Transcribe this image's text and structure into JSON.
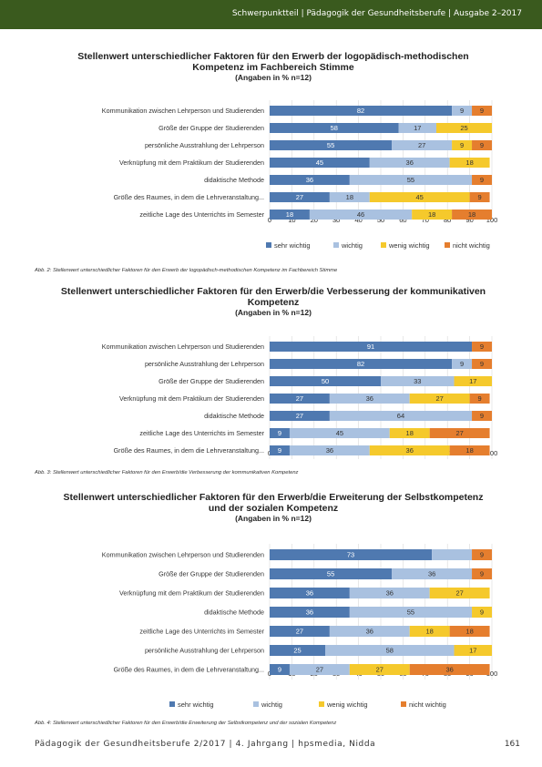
{
  "header": {
    "text": "Schwerpunktteil | Pädagogik der Gesundheitsberufe | Ausgabe 2–2017"
  },
  "colors": {
    "sehr_wichtig": "#4f79b0",
    "wichtig": "#a9c1e0",
    "wenig_wichtig": "#f5c92c",
    "nicht_wichtig": "#e57e2e",
    "header_bg": "#3a5a1e"
  },
  "chart_data": [
    {
      "type": "bar",
      "orientation": "horizontal-stacked",
      "title": "Stellenwert unterschiedlicher Faktoren für den Erwerb der logopädisch-methodischen Kompetenz im Fachbereich Stimme",
      "subtitle": "(Angaben in % n=12)",
      "categories": [
        "Kommunikation zwischen Lehrperson und Studierenden",
        "Größe der Gruppe der Studierenden",
        "persönliche Ausstrahlung der Lehrperson",
        "Verknüpfung mit dem Praktikum der Studierenden",
        "didaktische Methode",
        "Größe des Raumes, in dem die Lehrveranstaltung...",
        "zeitliche Lage des Unterrichts im Semester"
      ],
      "series": [
        {
          "name": "sehr wichtig",
          "values": [
            82,
            58,
            55,
            45,
            36,
            27,
            18
          ]
        },
        {
          "name": "wichtig",
          "values": [
            9,
            17,
            27,
            36,
            55,
            18,
            46
          ]
        },
        {
          "name": "wenig wichtig",
          "values": [
            0,
            25,
            9,
            18,
            0,
            45,
            18
          ]
        },
        {
          "name": "nicht wichtig",
          "values": [
            9,
            0,
            9,
            0,
            9,
            9,
            18
          ]
        }
      ],
      "labels": [
        [
          "82",
          "9",
          "",
          "9"
        ],
        [
          "58",
          "17",
          "25",
          ""
        ],
        [
          "55",
          "27",
          "9",
          "9"
        ],
        [
          "45",
          "36",
          "18",
          ""
        ],
        [
          "36",
          "55",
          "",
          "9"
        ],
        [
          "27",
          "18",
          "45",
          "9"
        ],
        [
          "18",
          "46",
          "18",
          "18"
        ]
      ],
      "xlim": [
        0,
        100
      ],
      "xticks": [
        "0",
        "10",
        "20",
        "30",
        "40",
        "50",
        "60",
        "70",
        "80",
        "90",
        "100"
      ],
      "legend": "bottom",
      "caption": "Abb. 2: Stellenwert unterschiedlicher Faktoren für den Erwerb der logopädisch-methodischen Kompetenz im Fachbereich Stimme"
    },
    {
      "type": "bar",
      "orientation": "horizontal-stacked",
      "title": "Stellenwert unterschiedlicher Faktoren für den Erwerb/die Verbesserung der kommunikativen Kompetenz",
      "subtitle": "(Angaben in % n=12)",
      "categories": [
        "Kommunikation zwischen Lehrperson und Studierenden",
        "persönliche Ausstrahlung der Lehrperson",
        "Größe der Gruppe der Studierenden",
        "Verknüpfung mit dem Praktikum der Studierenden",
        "didaktische Methode",
        "zeitliche Lage des Unterrichts im Semester",
        "Größe des Raumes, in dem die Lehrveranstaltung..."
      ],
      "series": [
        {
          "name": "sehr wichtig",
          "values": [
            91,
            82,
            50,
            27,
            27,
            9,
            9
          ]
        },
        {
          "name": "wichtig",
          "values": [
            0,
            9,
            33,
            36,
            64,
            45,
            36
          ]
        },
        {
          "name": "wenig wichtig",
          "values": [
            0,
            0,
            17,
            27,
            0,
            18,
            36
          ]
        },
        {
          "name": "nicht wichtig",
          "values": [
            9,
            9,
            0,
            9,
            9,
            27,
            18
          ]
        }
      ],
      "labels": [
        [
          "91",
          "",
          "",
          "9"
        ],
        [
          "82",
          "9",
          "",
          "9"
        ],
        [
          "50",
          "33",
          "17",
          ""
        ],
        [
          "27",
          "36",
          "27",
          "9"
        ],
        [
          "27",
          "64",
          "",
          "9"
        ],
        [
          "9",
          "45",
          "18",
          "27"
        ],
        [
          "9",
          "36",
          "36",
          "18"
        ]
      ],
      "xlim": [
        0,
        100
      ],
      "xticks": [
        "0",
        "10",
        "20",
        "30",
        "40",
        "50",
        "60",
        "70",
        "80",
        "90",
        "100"
      ],
      "legend": "none",
      "caption": "Abb. 3: Stellenwert unterschiedlicher Faktoren für den Erwerb/die Verbesserung der kommunikativen Kompetenz"
    },
    {
      "type": "bar",
      "orientation": "horizontal-stacked",
      "title": "Stellenwert unterschiedlicher Faktoren für den Erwerb/die Erweiterung der Selbstkompetenz und der sozialen Kompetenz",
      "subtitle": "(Angaben in % n=12)",
      "categories": [
        "Kommunikation zwischen Lehrperson und Studierenden",
        "Größe der Gruppe der Studierenden",
        "Verknüpfung mit dem Praktikum der Studierenden",
        "didaktische Methode",
        "zeitliche Lage des Unterrichts im Semester",
        "persönliche Ausstrahlung der Lehrperson",
        "Größe des Raumes, in dem die Lehrveranstaltung..."
      ],
      "series": [
        {
          "name": "sehr wichtig",
          "values": [
            73,
            55,
            36,
            36,
            27,
            25,
            9
          ]
        },
        {
          "name": "wichtig",
          "values": [
            18,
            36,
            36,
            55,
            36,
            58,
            27
          ]
        },
        {
          "name": "wenig wichtig",
          "values": [
            0,
            0,
            27,
            9,
            18,
            17,
            27
          ]
        },
        {
          "name": "nicht wichtig",
          "values": [
            9,
            9,
            0,
            0,
            18,
            0,
            36
          ]
        }
      ],
      "labels": [
        [
          "73",
          "",
          "",
          "9"
        ],
        [
          "55",
          "36",
          "",
          "9"
        ],
        [
          "36",
          "36",
          "27",
          ""
        ],
        [
          "36",
          "55",
          "9",
          ""
        ],
        [
          "27",
          "36",
          "18",
          "18"
        ],
        [
          "25",
          "58",
          "17",
          ""
        ],
        [
          "9",
          "27",
          "27",
          "36"
        ]
      ],
      "xlim": [
        0,
        100
      ],
      "xticks": [
        "0",
        "10",
        "20",
        "30",
        "40",
        "50",
        "60",
        "70",
        "80",
        "90",
        "100"
      ],
      "legend": "bottom",
      "caption": "Abb. 4: Stellenwert unterschiedlicher Faktoren für den Erwerb/die Erweiterung der Selbstkompetenz und der sozialen Kompetenz"
    }
  ],
  "footer": {
    "text": "Pädagogik der Gesundheitsberufe 2/2017   |   4. Jahrgang   |   hpsmedia, Nidda",
    "page": "161"
  }
}
